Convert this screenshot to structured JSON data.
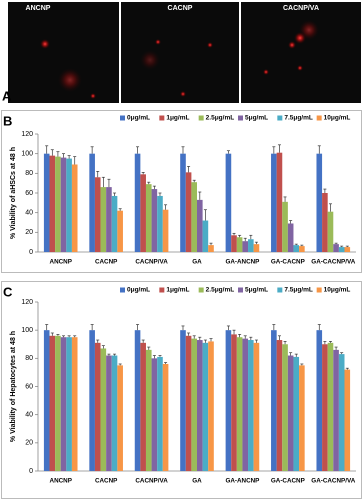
{
  "panel_labels": [
    "A",
    "B",
    "C"
  ],
  "images": {
    "labels": [
      "ANCNP",
      "CACNP",
      "CACNP/VA"
    ]
  },
  "chart_data": [
    {
      "type": "bar",
      "y_label": "% Viability of aHSCs at 48 h",
      "categories": [
        "ANCNP",
        "CACNP",
        "CACNP/VA",
        "GA",
        "GA-ANCNP",
        "GA-CACNP",
        "GA-CACNP/VA"
      ],
      "series": [
        {
          "name": "0μg/mL",
          "color": "#4472c4",
          "values": [
            100,
            100,
            100,
            100,
            100,
            100,
            100
          ],
          "errors": [
            8,
            7,
            7,
            7,
            3,
            7,
            8
          ]
        },
        {
          "name": "1μg/mL",
          "color": "#c0504d",
          "values": [
            98,
            76,
            79,
            81,
            17,
            101,
            60
          ],
          "errors": [
            6,
            6,
            2,
            6,
            2,
            8,
            4
          ]
        },
        {
          "name": "2.5μg/mL",
          "color": "#9bbb59",
          "values": [
            97,
            66,
            69,
            71,
            15,
            51,
            41
          ],
          "errors": [
            5,
            10,
            2,
            2,
            2,
            5,
            8
          ]
        },
        {
          "name": "5μg/mL",
          "color": "#8064a2",
          "values": [
            96,
            66,
            64,
            53,
            11,
            29,
            8
          ],
          "errors": [
            4,
            8,
            3,
            8,
            3,
            3,
            1
          ]
        },
        {
          "name": "7.5μg/mL",
          "color": "#4bacc6",
          "values": [
            95,
            57,
            57,
            32,
            13,
            7,
            5
          ],
          "errors": [
            3,
            3,
            3,
            11,
            4,
            1,
            1
          ]
        },
        {
          "name": "10μg/mL",
          "color": "#f79646",
          "values": [
            89,
            42,
            43,
            7,
            8,
            6,
            5
          ],
          "errors": [
            8,
            2,
            5,
            2,
            2,
            1,
            1
          ]
        }
      ],
      "ylim": [
        0,
        120
      ],
      "yticks": [
        0,
        20,
        40,
        60,
        80,
        100,
        120
      ]
    },
    {
      "type": "bar",
      "y_label": "% Viability of Hepatocytes at 48 h",
      "categories": [
        "ANCNP",
        "CACNP",
        "CACNP/VA",
        "GA",
        "GA-ANCNP",
        "GA-CACNP",
        "GA-CACNP/VA"
      ],
      "series": [
        {
          "name": "0μg/mL",
          "color": "#4472c4",
          "values": [
            100,
            100,
            100,
            100,
            100,
            100,
            100
          ],
          "errors": [
            4,
            4,
            4,
            3,
            3,
            4,
            4
          ]
        },
        {
          "name": "1μg/mL",
          "color": "#c0504d",
          "values": [
            96,
            91,
            91,
            96,
            97,
            93,
            90
          ],
          "errors": [
            2,
            2,
            2,
            2,
            3,
            3,
            2
          ]
        },
        {
          "name": "2.5μg/mL",
          "color": "#9bbb59",
          "values": [
            96,
            87,
            86,
            94,
            95,
            90,
            91
          ],
          "errors": [
            1,
            2,
            2,
            2,
            2,
            2,
            1
          ]
        },
        {
          "name": "5μg/mL",
          "color": "#8064a2",
          "values": [
            95,
            82,
            80,
            93,
            94,
            82,
            86
          ],
          "errors": [
            1,
            1,
            2,
            2,
            2,
            2,
            2
          ]
        },
        {
          "name": "7.5μg/mL",
          "color": "#4bacc6",
          "values": [
            95,
            82,
            81,
            91,
            93,
            81,
            83
          ],
          "errors": [
            1,
            1,
            1,
            2,
            2,
            2,
            1
          ]
        },
        {
          "name": "10μg/mL",
          "color": "#f79646",
          "values": [
            95,
            75,
            76,
            92,
            91,
            75,
            72
          ],
          "errors": [
            1,
            1,
            1,
            2,
            2,
            1,
            1
          ]
        }
      ],
      "ylim": [
        0,
        120
      ],
      "yticks": [
        0,
        20,
        40,
        60,
        80,
        100,
        120
      ]
    }
  ]
}
